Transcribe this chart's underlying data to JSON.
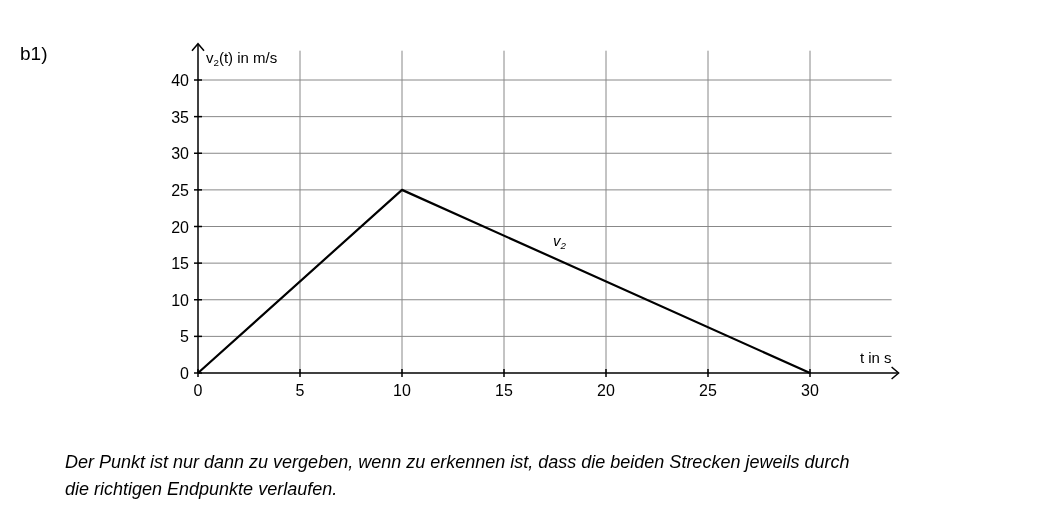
{
  "chart_data": {
    "type": "line",
    "xlabel": "t in s",
    "ylabel": "v$_{2}$(t) in m/s",
    "x": [
      0,
      10,
      30
    ],
    "series": [
      {
        "name": "v$_{2}$",
        "color": "#000000",
        "values": [
          0,
          25,
          0
        ]
      }
    ],
    "xlim": [
      0,
      34
    ],
    "xticks": [
      0,
      5,
      10,
      15,
      20,
      25,
      30
    ],
    "ylim": [
      0,
      44
    ],
    "yticks": [
      0,
      5,
      10,
      15,
      20,
      25,
      30,
      35,
      40
    ],
    "grid": true,
    "marker": "none",
    "line_style": "solid",
    "annotations": [
      "b1)",
      "Der Punkt ist nur dann zu vergeben, wenn zu erkennen ist, dass die beiden Strecken jeweils durch die richtigen Endpunkte verlaufen."
    ]
  }
}
